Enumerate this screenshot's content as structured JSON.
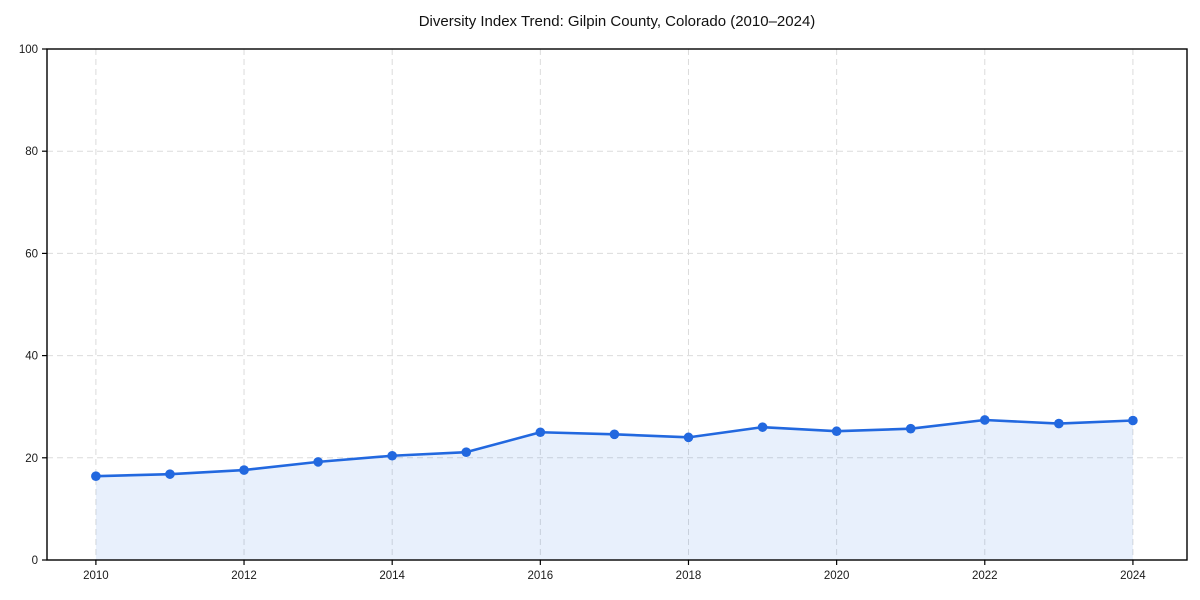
{
  "chart_data": {
    "type": "line",
    "title": "Diversity Index Trend: Gilpin County, Colorado (2010–2024)",
    "x": [
      2010,
      2011,
      2012,
      2013,
      2014,
      2015,
      2016,
      2017,
      2018,
      2019,
      2020,
      2021,
      2022,
      2023,
      2024
    ],
    "series": [
      {
        "name": "Diversity Index",
        "values": [
          16.4,
          16.8,
          17.6,
          19.2,
          20.4,
          21.1,
          25.0,
          24.6,
          24.0,
          26.0,
          25.2,
          25.7,
          27.4,
          26.7,
          27.3
        ]
      }
    ],
    "xlabel": "",
    "ylabel": "",
    "xlim": [
      2009.34,
      2024.73
    ],
    "ylim": [
      0,
      100
    ],
    "xticks": [
      "2010",
      "2012",
      "2014",
      "2016",
      "2018",
      "2020",
      "2022",
      "2024"
    ],
    "xtick_values": [
      2010,
      2012,
      2014,
      2016,
      2018,
      2020,
      2022,
      2024
    ],
    "yticks": [
      "0",
      "20",
      "40",
      "60",
      "80",
      "100"
    ],
    "ytick_values": [
      0,
      20,
      40,
      60,
      80,
      100
    ],
    "grid": true,
    "grid_style": "dashed",
    "legend_position": "none",
    "marker": "circle",
    "colors": {
      "line": "#2268DF",
      "marker": "#2268DF",
      "fill": "rgba(34,104,223,0.10)",
      "grid": "#DBDBDB",
      "axis": "#000000",
      "tick_text": "#1A1A1A",
      "title_text": "#111111",
      "background": "#FFFFFF"
    }
  }
}
